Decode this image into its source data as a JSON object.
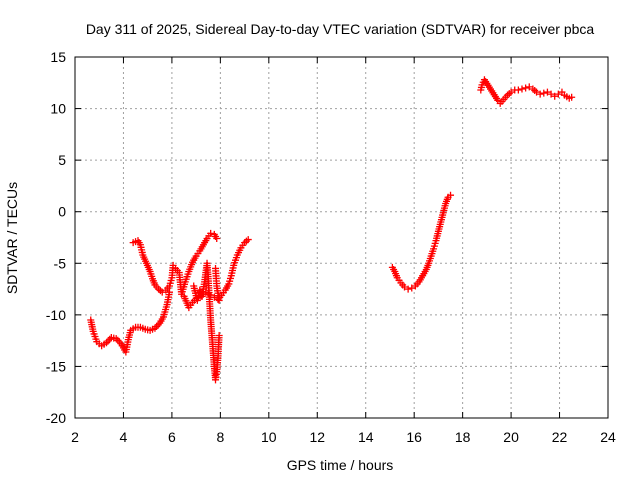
{
  "chart_data": {
    "type": "scatter",
    "title": "Day 311 of 2025, Sidereal Day-to-day VTEC variation (SDTVAR) for receiver pbca",
    "xlabel": "GPS time / hours",
    "ylabel": "SDTVAR / TECUs",
    "xlim": [
      2,
      24
    ],
    "ylim": [
      -20,
      15
    ],
    "xticks": [
      2,
      4,
      6,
      8,
      10,
      12,
      14,
      16,
      18,
      20,
      22,
      24
    ],
    "yticks": [
      -20,
      -15,
      -10,
      -5,
      0,
      5,
      10,
      15
    ],
    "grid": true,
    "marker": "+",
    "series": [
      {
        "name": "SDTVAR",
        "color": "#ff0000",
        "points": [
          [
            2.65,
            -10.5
          ],
          [
            2.75,
            -11.6
          ],
          [
            2.9,
            -12.6
          ],
          [
            3.1,
            -13.0
          ],
          [
            3.3,
            -12.7
          ],
          [
            3.5,
            -12.2
          ],
          [
            3.7,
            -12.3
          ],
          [
            3.9,
            -12.8
          ],
          [
            4.1,
            -13.6
          ],
          [
            4.2,
            -12.4
          ],
          [
            4.3,
            -11.5
          ],
          [
            4.5,
            -11.2
          ],
          [
            4.7,
            -11.2
          ],
          [
            4.9,
            -11.4
          ],
          [
            5.1,
            -11.5
          ],
          [
            5.3,
            -11.3
          ],
          [
            5.5,
            -10.8
          ],
          [
            5.65,
            -10.2
          ],
          [
            5.8,
            -9.0
          ],
          [
            5.9,
            -7.8
          ],
          [
            4.4,
            -3.0
          ],
          [
            4.5,
            -2.9
          ],
          [
            4.6,
            -2.8
          ],
          [
            4.7,
            -3.2
          ],
          [
            4.8,
            -4.2
          ],
          [
            4.95,
            -5.0
          ],
          [
            5.1,
            -5.8
          ],
          [
            5.2,
            -6.5
          ],
          [
            5.3,
            -7.1
          ],
          [
            5.45,
            -7.5
          ],
          [
            5.6,
            -7.8
          ],
          [
            5.75,
            -7.6
          ],
          [
            5.9,
            -7.2
          ],
          [
            6.0,
            -6.4
          ],
          [
            6.05,
            -5.2
          ],
          [
            6.15,
            -5.5
          ],
          [
            6.3,
            -5.9
          ],
          [
            6.4,
            -8.0
          ],
          [
            6.55,
            -6.8
          ],
          [
            6.7,
            -5.8
          ],
          [
            6.85,
            -4.9
          ],
          [
            7.0,
            -4.3
          ],
          [
            7.15,
            -3.8
          ],
          [
            7.3,
            -3.2
          ],
          [
            7.45,
            -2.6
          ],
          [
            7.6,
            -2.1
          ],
          [
            7.75,
            -2.2
          ],
          [
            7.85,
            -2.6
          ],
          [
            6.5,
            -8.2
          ],
          [
            6.7,
            -9.3
          ],
          [
            6.85,
            -8.8
          ],
          [
            7.0,
            -8.4
          ],
          [
            7.2,
            -8.2
          ],
          [
            7.4,
            -7.8
          ],
          [
            7.6,
            -8.1
          ],
          [
            7.75,
            -8.3
          ],
          [
            7.9,
            -8.5
          ],
          [
            8.05,
            -8.1
          ],
          [
            8.2,
            -7.6
          ],
          [
            8.35,
            -7.0
          ],
          [
            8.45,
            -6.2
          ],
          [
            8.55,
            -5.2
          ],
          [
            8.7,
            -4.2
          ],
          [
            8.85,
            -3.5
          ],
          [
            9.0,
            -3.0
          ],
          [
            9.15,
            -2.7
          ],
          [
            6.9,
            -7.2
          ],
          [
            7.05,
            -8.6
          ],
          [
            7.15,
            -7.6
          ],
          [
            7.25,
            -8.2
          ],
          [
            7.35,
            -6.8
          ],
          [
            7.45,
            -5.0
          ],
          [
            7.5,
            -6.5
          ],
          [
            7.55,
            -8.5
          ],
          [
            7.6,
            -10.5
          ],
          [
            7.65,
            -12.0
          ],
          [
            7.7,
            -13.5
          ],
          [
            7.75,
            -15.0
          ],
          [
            7.8,
            -16.3
          ],
          [
            7.85,
            -15.5
          ],
          [
            7.9,
            -14.2
          ],
          [
            7.95,
            -12.0
          ],
          [
            7.8,
            -5.5
          ],
          [
            7.85,
            -7.2
          ],
          [
            7.95,
            -8.6
          ],
          [
            15.1,
            -5.4
          ],
          [
            15.2,
            -5.8
          ],
          [
            15.3,
            -6.4
          ],
          [
            15.45,
            -6.9
          ],
          [
            15.6,
            -7.3
          ],
          [
            15.75,
            -7.5
          ],
          [
            15.9,
            -7.4
          ],
          [
            16.05,
            -7.2
          ],
          [
            16.2,
            -6.8
          ],
          [
            16.35,
            -6.2
          ],
          [
            16.5,
            -5.6
          ],
          [
            16.6,
            -5.0
          ],
          [
            16.7,
            -4.3
          ],
          [
            16.8,
            -3.6
          ],
          [
            16.9,
            -2.8
          ],
          [
            17.0,
            -1.9
          ],
          [
            17.1,
            -1.0
          ],
          [
            17.2,
            -0.1
          ],
          [
            17.3,
            0.8
          ],
          [
            17.4,
            1.4
          ],
          [
            17.5,
            1.6
          ],
          [
            18.75,
            11.8
          ],
          [
            18.8,
            12.3
          ],
          [
            18.9,
            12.8
          ],
          [
            19.45,
            10.8
          ],
          [
            19.55,
            10.5
          ],
          [
            19.7,
            10.9
          ],
          [
            19.85,
            11.3
          ],
          [
            20.0,
            11.6
          ],
          [
            20.15,
            11.8
          ],
          [
            20.3,
            11.8
          ],
          [
            20.45,
            11.9
          ],
          [
            20.6,
            12.0
          ],
          [
            20.75,
            12.1
          ],
          [
            20.9,
            11.9
          ],
          [
            21.05,
            11.6
          ],
          [
            21.2,
            11.4
          ],
          [
            21.35,
            11.5
          ],
          [
            21.5,
            11.6
          ],
          [
            21.65,
            11.4
          ],
          [
            21.8,
            11.2
          ],
          [
            21.95,
            11.4
          ],
          [
            22.1,
            11.6
          ],
          [
            22.2,
            11.3
          ],
          [
            22.4,
            11.0
          ],
          [
            22.5,
            11.1
          ]
        ]
      }
    ]
  }
}
